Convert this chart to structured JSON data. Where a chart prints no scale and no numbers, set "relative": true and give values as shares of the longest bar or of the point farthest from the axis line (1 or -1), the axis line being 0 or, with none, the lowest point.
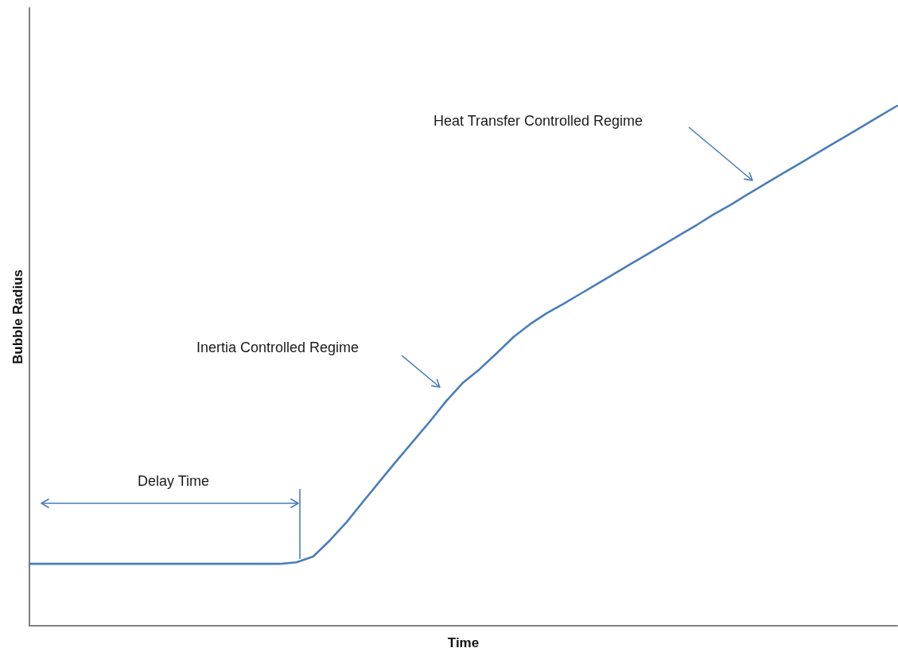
{
  "chart_data": {
    "type": "line",
    "relative": true,
    "xlabel": "Time",
    "ylabel": "Bubble Radius",
    "marker": "none",
    "annotations": [
      "Delay Time",
      "Inertia Controlled Regime",
      "Heat Transfer Controlled Regime"
    ],
    "categories": [
      null,
      null,
      null,
      null,
      null,
      null,
      null,
      null,
      null,
      null,
      null,
      null,
      null,
      null,
      null,
      null,
      null,
      null,
      null,
      null,
      null,
      null,
      null,
      null,
      null,
      null,
      null,
      null,
      null,
      null,
      null,
      null,
      null,
      null,
      null,
      null,
      null,
      null,
      null,
      null,
      null,
      null,
      null,
      null,
      null,
      null,
      null,
      null,
      null,
      null,
      null,
      null,
      null
    ],
    "series": [
      {
        "color": "#4a7ebb",
        "values": [
          0.119,
          0.119,
          0.119,
          0.119,
          0.119,
          0.119,
          0.119,
          0.119,
          0.119,
          0.119,
          0.119,
          0.119,
          0.119,
          0.119,
          0.119,
          0.119,
          0.122,
          0.133,
          0.164,
          0.199,
          0.239,
          0.278,
          0.317,
          0.355,
          0.393,
          0.433,
          0.468,
          0.494,
          0.524,
          0.555,
          0.58,
          0.601,
          0.619,
          0.638,
          0.657,
          0.676,
          0.695,
          0.714,
          0.733,
          0.752,
          0.771,
          0.791,
          0.809,
          0.829,
          0.848,
          0.867,
          0.886,
          0.905,
          0.924,
          0.943,
          0.962,
          0.981,
          1
        ]
      }
    ]
  }
}
